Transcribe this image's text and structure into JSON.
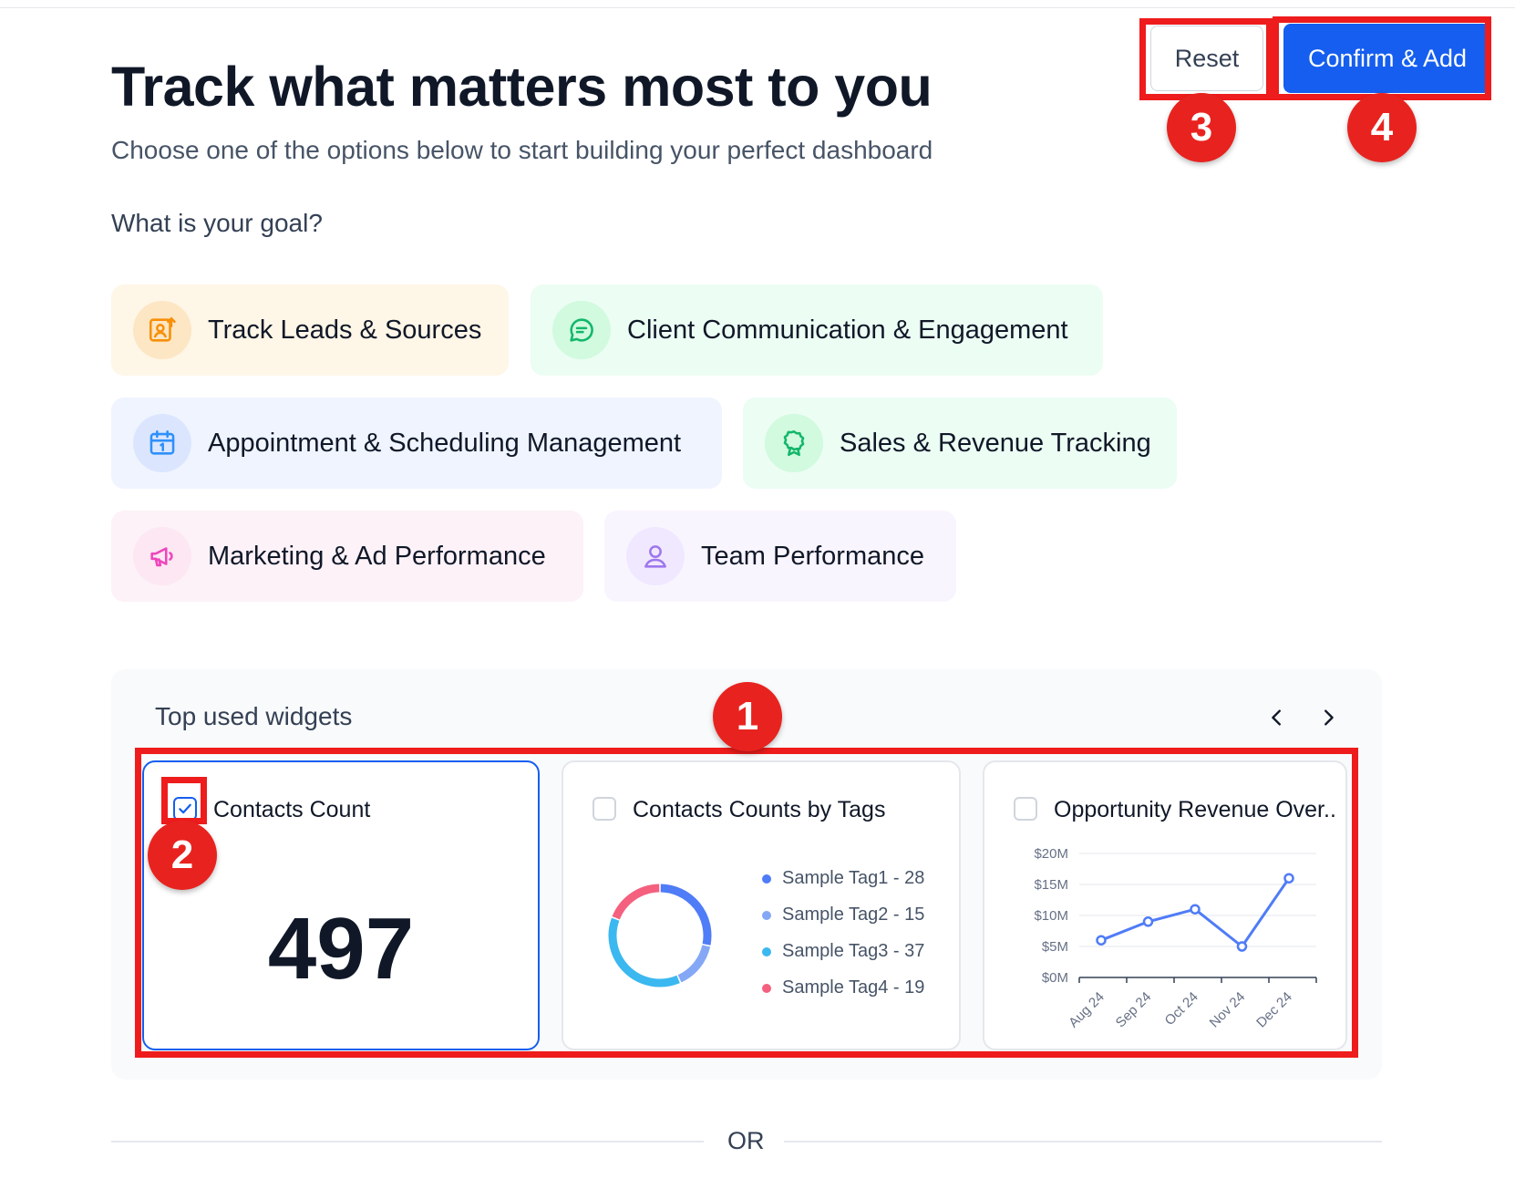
{
  "header": {
    "title": "Track what matters most to you",
    "subtitle": "Choose one of the options below to start building your perfect dashboard",
    "reset_label": "Reset",
    "confirm_label": "Confirm & Add"
  },
  "goal_question": "What is your goal?",
  "goals": [
    {
      "label": "Track Leads & Sources",
      "icon": "lead-tracking-icon",
      "bg": "#fef6e7",
      "icon_bg": "#fde6c4",
      "icon_color": "#f79009"
    },
    {
      "label": "Client Communication & Engagement",
      "icon": "chat-bubble-icon",
      "bg": "#ecfdf3",
      "icon_bg": "#d1fadf",
      "icon_color": "#12b76a"
    },
    {
      "label": "Appointment & Scheduling Management",
      "icon": "calendar-icon",
      "bg": "#eff4ff",
      "icon_bg": "#dbe6fe",
      "icon_color": "#2e90fa"
    },
    {
      "label": "Sales & Revenue Tracking",
      "icon": "award-ribbon-icon",
      "bg": "#ecfdf3",
      "icon_bg": "#d1fadf",
      "icon_color": "#12b76a"
    },
    {
      "label": "Marketing & Ad Performance",
      "icon": "megaphone-icon",
      "bg": "#fdf2f8",
      "icon_bg": "#fce7f3",
      "icon_color": "#ee46bc"
    },
    {
      "label": "Team Performance",
      "icon": "user-icon",
      "bg": "#f9f5ff",
      "icon_bg": "#f0e8ff",
      "icon_color": "#9e77ed"
    }
  ],
  "widgets": {
    "title": "Top used widgets",
    "items": [
      {
        "title": "Contacts Count",
        "checked": true,
        "value": "497"
      },
      {
        "title": "Contacts Counts by Tags",
        "checked": false,
        "legend": [
          "Sample Tag1 - 28",
          "Sample Tag2 - 15",
          "Sample Tag3 - 37",
          "Sample Tag4 - 19"
        ]
      },
      {
        "title": "Opportunity Revenue Over..",
        "checked": false
      }
    ]
  },
  "or_label": "OR",
  "annotations": [
    "1",
    "2",
    "3",
    "4"
  ],
  "chart_data": [
    {
      "type": "pie",
      "title": "Contacts Counts by Tags",
      "categories": [
        "Sample Tag1",
        "Sample Tag2",
        "Sample Tag3",
        "Sample Tag4"
      ],
      "values": [
        28,
        15,
        37,
        19
      ],
      "colors": [
        "#4f7cf7",
        "#84a8f5",
        "#3bb8f0",
        "#f4607e"
      ],
      "donut": true,
      "legend": "right"
    },
    {
      "type": "line",
      "title": "Opportunity Revenue Over..",
      "x": [
        "Aug 24",
        "Sep 24",
        "Oct 24",
        "Nov 24",
        "Dec 24"
      ],
      "values": [
        6,
        9,
        11,
        5,
        16
      ],
      "ylim": [
        0,
        20
      ],
      "yticks": [
        "$0M",
        "$5M",
        "$10M",
        "$15M",
        "$20M"
      ],
      "ytick_values": [
        0,
        5,
        10,
        15,
        20
      ],
      "color": "#4f7cf7",
      "grid": true
    }
  ]
}
